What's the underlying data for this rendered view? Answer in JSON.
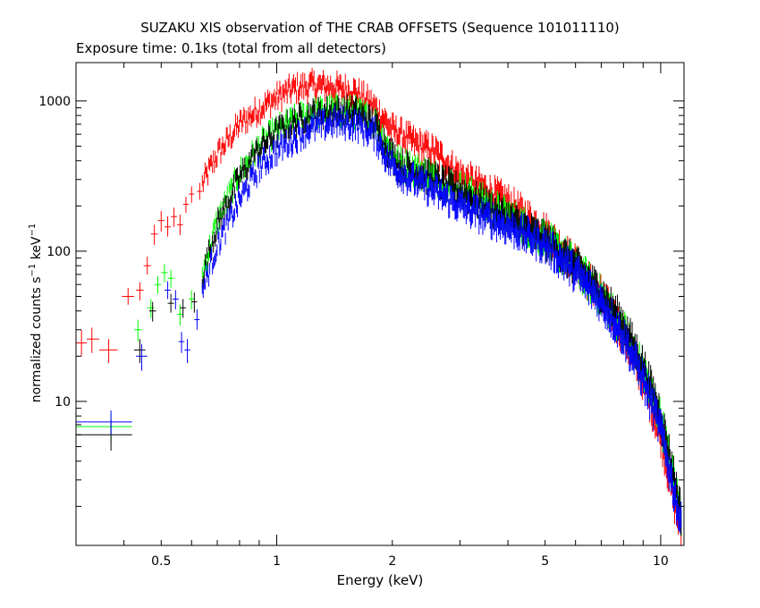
{
  "chart_data": {
    "type": "scatter",
    "title": "SUZAKU XIS observation of THE CRAB OFFSETS (Sequence 101011110)",
    "subtitle": "Exposure time: 0.1ks (total from all detectors)",
    "xlabel": "Energy (keV)",
    "ylabel_main": "normalized counts s",
    "ylabel_exp1": "−1",
    "ylabel_mid": " keV",
    "ylabel_exp2": "−1",
    "xscale": "log",
    "yscale": "log",
    "xlim": [
      0.3,
      11.5
    ],
    "ylim": [
      1.1,
      1800
    ],
    "x_ticks": [
      {
        "value": 0.5,
        "label": "0.5"
      },
      {
        "value": 1,
        "label": "1"
      },
      {
        "value": 2,
        "label": "2"
      },
      {
        "value": 5,
        "label": "5"
      },
      {
        "value": 10,
        "label": "10"
      }
    ],
    "y_ticks": [
      {
        "value": 10,
        "label": "10"
      },
      {
        "value": 100,
        "label": "100"
      },
      {
        "value": 1000,
        "label": "1000"
      }
    ],
    "grid": false,
    "legend": "none",
    "series": [
      {
        "color": "#ff0000",
        "points": [
          {
            "x": 0.31,
            "y": 24.5,
            "xlo": 0.3,
            "xhi": 0.32,
            "ylo": 20,
            "yhi": 30
          },
          {
            "x": 0.33,
            "y": 26,
            "xlo": 0.32,
            "xhi": 0.345,
            "ylo": 21,
            "yhi": 31
          },
          {
            "x": 0.365,
            "y": 22,
            "xlo": 0.345,
            "xhi": 0.385,
            "ylo": 18,
            "yhi": 26
          },
          {
            "x": 0.41,
            "y": 50,
            "xlo": 0.395,
            "xhi": 0.425,
            "ylo": 44,
            "yhi": 57
          },
          {
            "x": 0.44,
            "y": 55,
            "xlo": 0.43,
            "xhi": 0.45,
            "ylo": 47,
            "yhi": 62
          },
          {
            "x": 0.46,
            "y": 80,
            "xlo": 0.45,
            "xhi": 0.47,
            "ylo": 70,
            "yhi": 92
          },
          {
            "x": 0.48,
            "y": 130,
            "xlo": 0.47,
            "xhi": 0.49,
            "ylo": 110,
            "yhi": 150
          },
          {
            "x": 0.5,
            "y": 160,
            "xlo": 0.49,
            "xhi": 0.51,
            "ylo": 135,
            "yhi": 185
          },
          {
            "x": 0.52,
            "y": 145,
            "xlo": 0.51,
            "xhi": 0.53,
            "ylo": 125,
            "yhi": 170
          },
          {
            "x": 0.54,
            "y": 170,
            "xlo": 0.53,
            "xhi": 0.55,
            "ylo": 145,
            "yhi": 195
          },
          {
            "x": 0.56,
            "y": 150,
            "xlo": 0.55,
            "xhi": 0.57,
            "ylo": 128,
            "yhi": 175
          },
          {
            "x": 0.58,
            "y": 205,
            "xlo": 0.57,
            "xhi": 0.59,
            "ylo": 180,
            "yhi": 230
          },
          {
            "x": 0.6,
            "y": 240,
            "xlo": 0.59,
            "xhi": 0.61,
            "ylo": 210,
            "yhi": 270
          },
          {
            "x": 0.63,
            "y": 250,
            "xlo": 0.62,
            "xhi": 0.64,
            "ylo": 220,
            "yhi": 285
          }
        ],
        "curve": [
          [
            0.64,
            280
          ],
          [
            0.7,
            440
          ],
          [
            0.8,
            700
          ],
          [
            0.9,
            880
          ],
          [
            1.0,
            1050
          ],
          [
            1.1,
            1200
          ],
          [
            1.25,
            1270
          ],
          [
            1.4,
            1230
          ],
          [
            1.6,
            1150
          ],
          [
            1.8,
            900
          ],
          [
            2.0,
            640
          ],
          [
            2.3,
            520
          ],
          [
            2.6,
            450
          ],
          [
            3.0,
            320
          ],
          [
            4.0,
            210
          ],
          [
            5.0,
            135
          ],
          [
            6.0,
            82
          ],
          [
            7.0,
            50
          ],
          [
            8.0,
            28
          ],
          [
            9.0,
            14
          ],
          [
            10.0,
            6
          ],
          [
            10.8,
            2.3
          ],
          [
            11.3,
            1.4
          ]
        ]
      },
      {
        "color": "#00ff00",
        "points": [
          {
            "x": 0.37,
            "y": 6.8,
            "xlo": 0.3,
            "xhi": 0.42,
            "ylo": 5.3,
            "yhi": 8.3
          },
          {
            "x": 0.435,
            "y": 30,
            "xlo": 0.425,
            "xhi": 0.445,
            "ylo": 25,
            "yhi": 35
          },
          {
            "x": 0.47,
            "y": 42,
            "xlo": 0.46,
            "xhi": 0.48,
            "ylo": 36,
            "yhi": 48
          },
          {
            "x": 0.49,
            "y": 60,
            "xlo": 0.48,
            "xhi": 0.5,
            "ylo": 52,
            "yhi": 68
          },
          {
            "x": 0.51,
            "y": 72,
            "xlo": 0.5,
            "xhi": 0.52,
            "ylo": 62,
            "yhi": 82
          },
          {
            "x": 0.53,
            "y": 66,
            "xlo": 0.52,
            "xhi": 0.54,
            "ylo": 57,
            "yhi": 75
          },
          {
            "x": 0.56,
            "y": 38,
            "xlo": 0.55,
            "xhi": 0.57,
            "ylo": 32,
            "yhi": 44
          },
          {
            "x": 0.6,
            "y": 48,
            "xlo": 0.59,
            "xhi": 0.61,
            "ylo": 41,
            "yhi": 55
          }
        ],
        "curve": [
          [
            0.64,
            70
          ],
          [
            0.7,
            160
          ],
          [
            0.8,
            330
          ],
          [
            0.9,
            500
          ],
          [
            1.0,
            640
          ],
          [
            1.2,
            820
          ],
          [
            1.4,
            860
          ],
          [
            1.6,
            840
          ],
          [
            1.8,
            720
          ],
          [
            1.95,
            480
          ],
          [
            2.1,
            380
          ],
          [
            2.5,
            320
          ],
          [
            3.0,
            260
          ],
          [
            4.0,
            170
          ],
          [
            5.0,
            120
          ],
          [
            6.0,
            80
          ],
          [
            7.0,
            50
          ],
          [
            8.0,
            30
          ],
          [
            9.0,
            16
          ],
          [
            10.0,
            7.5
          ],
          [
            10.8,
            3
          ],
          [
            11.3,
            1.7
          ]
        ]
      },
      {
        "color": "#000000",
        "points": [
          {
            "x": 0.37,
            "y": 6.0,
            "xlo": 0.3,
            "xhi": 0.42,
            "ylo": 4.7,
            "yhi": 7.5
          },
          {
            "x": 0.44,
            "y": 22,
            "xlo": 0.425,
            "xhi": 0.455,
            "ylo": 18,
            "yhi": 26
          },
          {
            "x": 0.475,
            "y": 40,
            "xlo": 0.465,
            "xhi": 0.485,
            "ylo": 34,
            "yhi": 46
          },
          {
            "x": 0.53,
            "y": 45,
            "xlo": 0.52,
            "xhi": 0.54,
            "ylo": 39,
            "yhi": 52
          },
          {
            "x": 0.57,
            "y": 42,
            "xlo": 0.56,
            "xhi": 0.58,
            "ylo": 36,
            "yhi": 48
          },
          {
            "x": 0.61,
            "y": 46,
            "xlo": 0.6,
            "xhi": 0.62,
            "ylo": 39,
            "yhi": 53
          }
        ],
        "curve": [
          [
            0.64,
            68
          ],
          [
            0.7,
            150
          ],
          [
            0.8,
            310
          ],
          [
            0.9,
            480
          ],
          [
            1.0,
            620
          ],
          [
            1.2,
            800
          ],
          [
            1.4,
            850
          ],
          [
            1.6,
            830
          ],
          [
            1.8,
            700
          ],
          [
            1.95,
            470
          ],
          [
            2.1,
            370
          ],
          [
            2.5,
            310
          ],
          [
            3.0,
            250
          ],
          [
            4.0,
            165
          ],
          [
            5.0,
            118
          ],
          [
            6.0,
            80
          ],
          [
            7.0,
            52
          ],
          [
            8.0,
            32
          ],
          [
            9.0,
            17
          ],
          [
            10.0,
            8
          ],
          [
            10.8,
            3.2
          ],
          [
            11.3,
            1.8
          ]
        ]
      },
      {
        "color": "#0000ff",
        "points": [
          {
            "x": 0.37,
            "y": 7.3,
            "xlo": 0.3,
            "xhi": 0.42,
            "ylo": 6.0,
            "yhi": 8.7
          },
          {
            "x": 0.445,
            "y": 20,
            "xlo": 0.43,
            "xhi": 0.46,
            "ylo": 16,
            "yhi": 24
          },
          {
            "x": 0.52,
            "y": 55,
            "xlo": 0.51,
            "xhi": 0.53,
            "ylo": 48,
            "yhi": 63
          },
          {
            "x": 0.545,
            "y": 48,
            "xlo": 0.535,
            "xhi": 0.555,
            "ylo": 41,
            "yhi": 55
          },
          {
            "x": 0.565,
            "y": 25,
            "xlo": 0.555,
            "xhi": 0.575,
            "ylo": 21,
            "yhi": 29
          },
          {
            "x": 0.585,
            "y": 22,
            "xlo": 0.575,
            "xhi": 0.595,
            "ylo": 18,
            "yhi": 26
          },
          {
            "x": 0.62,
            "y": 35,
            "xlo": 0.61,
            "xhi": 0.63,
            "ylo": 30,
            "yhi": 41
          }
        ],
        "curve": [
          [
            0.64,
            55
          ],
          [
            0.7,
            110
          ],
          [
            0.8,
            220
          ],
          [
            0.9,
            360
          ],
          [
            1.0,
            470
          ],
          [
            1.2,
            640
          ],
          [
            1.4,
            720
          ],
          [
            1.6,
            700
          ],
          [
            1.8,
            600
          ],
          [
            1.95,
            400
          ],
          [
            2.1,
            330
          ],
          [
            2.5,
            260
          ],
          [
            3.0,
            200
          ],
          [
            4.0,
            145
          ],
          [
            5.0,
            110
          ],
          [
            6.0,
            72
          ],
          [
            7.0,
            46
          ],
          [
            8.0,
            27
          ],
          [
            9.0,
            14
          ],
          [
            10.0,
            6.5
          ],
          [
            10.8,
            2.6
          ],
          [
            11.3,
            1.5
          ]
        ]
      }
    ]
  }
}
